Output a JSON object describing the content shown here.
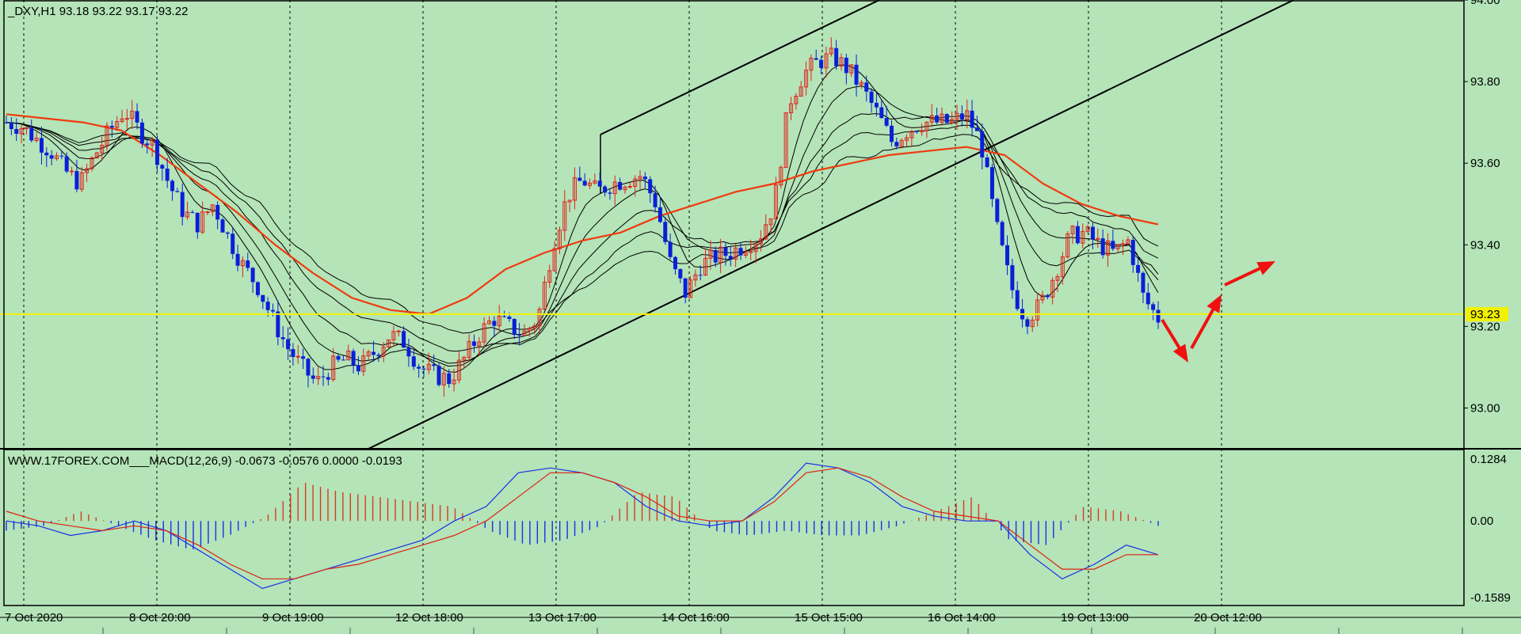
{
  "header": {
    "price_title": "_DXY,H1  93.18 93.22 93.17 93.22",
    "macd_title": "WWW.17FOREX.COM___MACD(12,26,9) -0.0673 -0.0576 0.0000 -0.0193"
  },
  "colors": {
    "background": "#b4e4b8",
    "bull_candle": "#e0231c",
    "bear_candle": "#0a1fd8",
    "ema_slow": "#f03a10",
    "ema_fast": "#000000",
    "current_price_line": "#f2f200",
    "macd_line": "#1a2fe8",
    "signal_line": "#e02010",
    "hist_pos": "#d83a20",
    "hist_neg": "#1a2fe8",
    "arrow": "#f01010",
    "grid": "#000000"
  },
  "chart_data": [
    {
      "type": "candlestick",
      "title": "_DXY,H1",
      "ohlc_last": {
        "open": 93.18,
        "high": 93.22,
        "low": 93.17,
        "close": 93.22
      },
      "ylim": [
        92.9,
        94.0
      ],
      "y_ticks": [
        "94.00",
        "93.80",
        "93.60",
        "93.40",
        "93.20",
        "93.00"
      ],
      "current_price_label": "93.23",
      "current_price": 93.23,
      "x_labels": [
        "7 Oct 2020",
        "8 Oct 20:00",
        "9 Oct 19:00",
        "12 Oct 18:00",
        "13 Oct 17:00",
        "14 Oct 16:00",
        "15 Oct 15:00",
        "16 Oct 14:00",
        "19 Oct 13:00",
        "20 Oct 12:00"
      ],
      "close_path": [
        93.7,
        93.69,
        93.66,
        93.63,
        93.58,
        93.55,
        93.62,
        93.68,
        93.73,
        93.68,
        93.64,
        93.55,
        93.48,
        93.45,
        93.5,
        93.42,
        93.35,
        93.3,
        93.22,
        93.15,
        93.1,
        93.06,
        93.1,
        93.12,
        93.1,
        93.14,
        93.18,
        93.16,
        93.1,
        93.08,
        93.07,
        93.12,
        93.18,
        93.22,
        93.2,
        93.18,
        93.22,
        93.4,
        93.52,
        93.56,
        93.53,
        93.55,
        93.56,
        93.57,
        93.5,
        93.35,
        93.28,
        93.35,
        93.37,
        93.38,
        93.4,
        93.42,
        93.5,
        93.75,
        93.82,
        93.85,
        93.86,
        93.83,
        93.78,
        93.72,
        93.65,
        93.68,
        93.7,
        93.7,
        93.7,
        93.72,
        93.65,
        93.45,
        93.3,
        93.22,
        93.25,
        93.33,
        93.42,
        93.43,
        93.4,
        93.38,
        93.41,
        93.27,
        93.22
      ],
      "series": [
        {
          "name": "",
          "values": [
            93.72,
            93.71,
            93.7,
            93.68,
            93.62,
            93.55,
            93.48,
            93.4,
            93.33,
            93.27,
            93.24,
            93.23,
            93.27,
            93.34,
            93.38,
            93.41,
            93.43,
            93.47,
            93.5,
            93.53,
            93.55,
            93.58,
            93.6,
            93.62,
            93.63,
            93.64,
            93.62,
            93.55,
            93.5,
            93.47,
            93.45
          ]
        }
      ]
    },
    {
      "type": "line",
      "title": "MACD(12,26,9)",
      "values_readout": [
        -0.0673,
        -0.0576,
        0.0,
        -0.0193
      ],
      "ylim": [
        -0.1589,
        0.1284
      ],
      "y_ticks": [
        "0.1284",
        "0.00",
        "-0.1589"
      ],
      "series": [
        {
          "name": "",
          "values": [
            0.0,
            -0.01,
            -0.03,
            -0.02,
            0.0,
            -0.02,
            -0.06,
            -0.1,
            -0.14,
            -0.12,
            -0.1,
            -0.08,
            -0.06,
            -0.04,
            0.0,
            0.03,
            0.1,
            0.11,
            0.1,
            0.08,
            0.03,
            0.0,
            -0.01,
            0.0,
            0.05,
            0.12,
            0.11,
            0.08,
            0.03,
            0.01,
            0.0,
            0.0,
            -0.07,
            -0.12,
            -0.09,
            -0.05,
            -0.07
          ]
        },
        {
          "name": "",
          "values": [
            0.02,
            0.0,
            -0.01,
            -0.02,
            -0.01,
            -0.02,
            -0.05,
            -0.09,
            -0.12,
            -0.12,
            -0.1,
            -0.09,
            -0.07,
            -0.05,
            -0.03,
            0.0,
            0.05,
            0.1,
            0.1,
            0.08,
            0.05,
            0.01,
            0.0,
            0.0,
            0.04,
            0.1,
            0.11,
            0.09,
            0.05,
            0.02,
            0.01,
            0.0,
            -0.05,
            -0.1,
            -0.1,
            -0.07,
            -0.07
          ]
        },
        {
          "name": "",
          "values": [
            -0.02,
            -0.01,
            0.02,
            -0.01,
            -0.04,
            -0.06,
            -0.03,
            0.01,
            0.08,
            0.06,
            0.05,
            0.04,
            0.03,
            -0.02,
            -0.05,
            -0.04,
            -0.01,
            0.06,
            0.05,
            -0.02,
            -0.03,
            -0.02,
            -0.03,
            -0.03,
            -0.01,
            0.02,
            0.05,
            -0.04,
            -0.05,
            0.03,
            0.02,
            -0.01
          ]
        }
      ]
    }
  ]
}
